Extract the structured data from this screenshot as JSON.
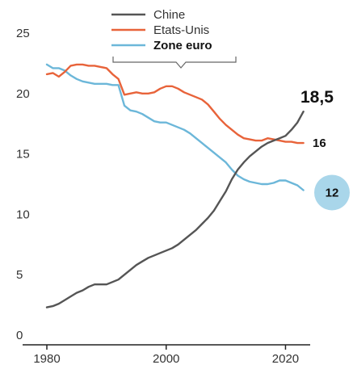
{
  "chart_data": {
    "type": "line",
    "title": "",
    "xlabel": "",
    "ylabel": "",
    "xlim": [
      1980,
      2024
    ],
    "ylim": [
      0,
      25
    ],
    "x_ticks": [
      "1980",
      "2000",
      "2020"
    ],
    "y_ticks": [
      "0",
      "5",
      "10",
      "15",
      "20",
      "25"
    ],
    "grid": false,
    "legend_position": "top-center",
    "series": [
      {
        "name": "Chine",
        "color": "#555555",
        "end_label": "18,5",
        "x": [
          1980,
          1981,
          1982,
          1983,
          1984,
          1985,
          1986,
          1987,
          1988,
          1989,
          1990,
          1991,
          1992,
          1993,
          1994,
          1995,
          1996,
          1997,
          1998,
          1999,
          2000,
          2001,
          2002,
          2003,
          2004,
          2005,
          2006,
          2007,
          2008,
          2009,
          2010,
          2011,
          2012,
          2013,
          2014,
          2015,
          2016,
          2017,
          2018,
          2019,
          2020,
          2021,
          2022,
          2023
        ],
        "y": [
          2.3,
          2.4,
          2.6,
          2.9,
          3.2,
          3.5,
          3.7,
          4.0,
          4.2,
          4.2,
          4.2,
          4.4,
          4.6,
          5.0,
          5.4,
          5.8,
          6.1,
          6.4,
          6.6,
          6.8,
          7.0,
          7.2,
          7.5,
          7.9,
          8.3,
          8.7,
          9.2,
          9.7,
          10.3,
          11.1,
          11.9,
          12.9,
          13.7,
          14.3,
          14.8,
          15.2,
          15.6,
          15.9,
          16.1,
          16.3,
          16.5,
          17.0,
          17.6,
          18.5
        ]
      },
      {
        "name": "Etats-Unis",
        "color": "#e8633a",
        "end_label": "16",
        "x": [
          1980,
          1981,
          1982,
          1983,
          1984,
          1985,
          1986,
          1987,
          1988,
          1989,
          1990,
          1991,
          1992,
          1993,
          1994,
          1995,
          1996,
          1997,
          1998,
          1999,
          2000,
          2001,
          2002,
          2003,
          2004,
          2005,
          2006,
          2007,
          2008,
          2009,
          2010,
          2011,
          2012,
          2013,
          2014,
          2015,
          2016,
          2017,
          2018,
          2019,
          2020,
          2021,
          2022,
          2023
        ],
        "y": [
          21.6,
          21.7,
          21.4,
          21.8,
          22.3,
          22.4,
          22.4,
          22.3,
          22.3,
          22.2,
          22.1,
          21.6,
          21.2,
          19.9,
          20.0,
          20.1,
          20.0,
          20.0,
          20.1,
          20.4,
          20.6,
          20.6,
          20.4,
          20.1,
          19.9,
          19.7,
          19.5,
          19.1,
          18.5,
          17.9,
          17.4,
          17.0,
          16.6,
          16.3,
          16.2,
          16.1,
          16.1,
          16.3,
          16.2,
          16.1,
          16.0,
          16.0,
          15.9,
          15.9
        ]
      },
      {
        "name": "Zone euro",
        "color": "#6cb7d9",
        "end_label": "12",
        "x": [
          1980,
          1981,
          1982,
          1983,
          1984,
          1985,
          1986,
          1987,
          1988,
          1989,
          1990,
          1991,
          1992,
          1993,
          1994,
          1995,
          1996,
          1997,
          1998,
          1999,
          2000,
          2001,
          2002,
          2003,
          2004,
          2005,
          2006,
          2007,
          2008,
          2009,
          2010,
          2011,
          2012,
          2013,
          2014,
          2015,
          2016,
          2017,
          2018,
          2019,
          2020,
          2021,
          2022,
          2023
        ],
        "y": [
          22.4,
          22.1,
          22.1,
          21.9,
          21.5,
          21.2,
          21.0,
          20.9,
          20.8,
          20.8,
          20.8,
          20.7,
          20.7,
          19.0,
          18.6,
          18.5,
          18.3,
          18.0,
          17.7,
          17.6,
          17.6,
          17.4,
          17.2,
          17.0,
          16.7,
          16.3,
          15.9,
          15.5,
          15.1,
          14.7,
          14.3,
          13.7,
          13.2,
          12.9,
          12.7,
          12.6,
          12.5,
          12.5,
          12.6,
          12.8,
          12.8,
          12.6,
          12.4,
          12.0
        ]
      }
    ]
  }
}
